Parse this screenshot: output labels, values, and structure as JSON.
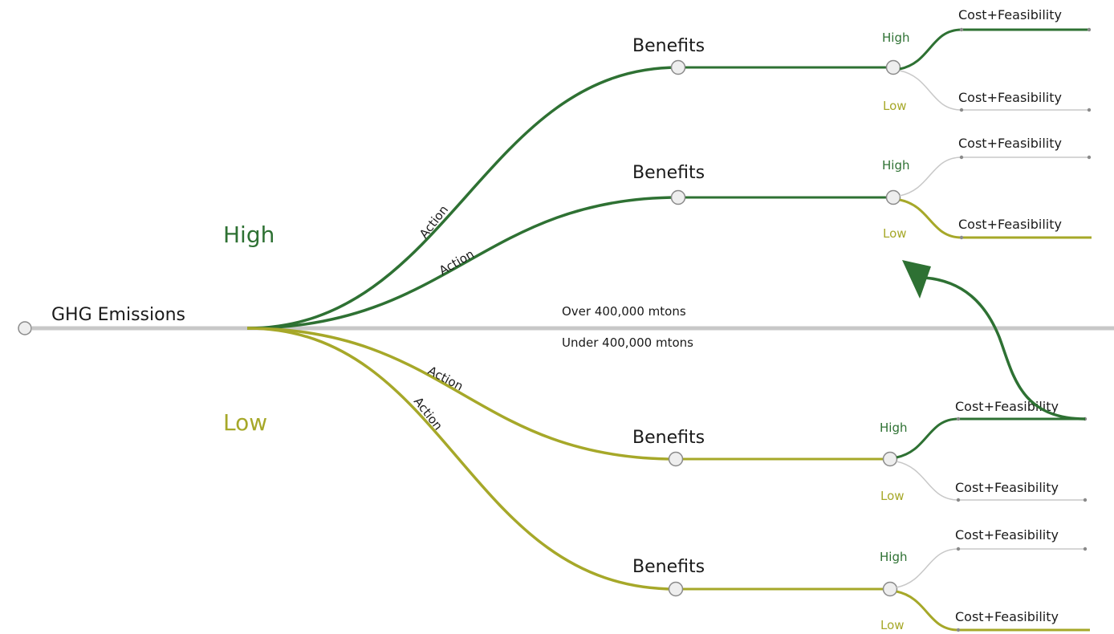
{
  "colors": {
    "high": "#2e7133",
    "low": "#a6a829",
    "neutral": "#c8c8c8",
    "node_stroke": "#8a8a8a",
    "node_fill": "#eeeeee",
    "text": "#1a1a1a"
  },
  "root": {
    "label": "GHG Emissions"
  },
  "divider": {
    "above_label": "Over 400,000 mtons",
    "below_label": "Under 400,000 mtons"
  },
  "regions": {
    "high_label": "High",
    "low_label": "Low"
  },
  "branches": [
    {
      "emission_level": "High",
      "action_label": "Action",
      "benefits_label": "Benefits",
      "outcomes": [
        {
          "level_label": "High",
          "level": "high",
          "cost_label": "Cost+Feasibility",
          "active": true
        },
        {
          "level_label": "Low",
          "level": "low",
          "cost_label": "Cost+Feasibility",
          "active": false
        }
      ]
    },
    {
      "emission_level": "High",
      "action_label": "Action",
      "benefits_label": "Benefits",
      "outcomes": [
        {
          "level_label": "High",
          "level": "high",
          "cost_label": "Cost+Feasibility",
          "active": false
        },
        {
          "level_label": "Low",
          "level": "low",
          "cost_label": "Cost+Feasibility",
          "active": true
        }
      ]
    },
    {
      "emission_level": "Low",
      "action_label": "Action",
      "benefits_label": "Benefits",
      "outcomes": [
        {
          "level_label": "High",
          "level": "high",
          "cost_label": "Cost+Feasibility",
          "active": true
        },
        {
          "level_label": "Low",
          "level": "low",
          "cost_label": "Cost+Feasibility",
          "active": false
        }
      ]
    },
    {
      "emission_level": "Low",
      "action_label": "Action",
      "benefits_label": "Benefits",
      "outcomes": [
        {
          "level_label": "High",
          "level": "high",
          "cost_label": "Cost+Feasibility",
          "active": false
        },
        {
          "level_label": "Low",
          "level": "low",
          "cost_label": "Cost+Feasibility",
          "active": true
        }
      ]
    }
  ],
  "arrow": {
    "from": "low-emission high-benefit high-cost outcome",
    "to": "high-emission region"
  }
}
